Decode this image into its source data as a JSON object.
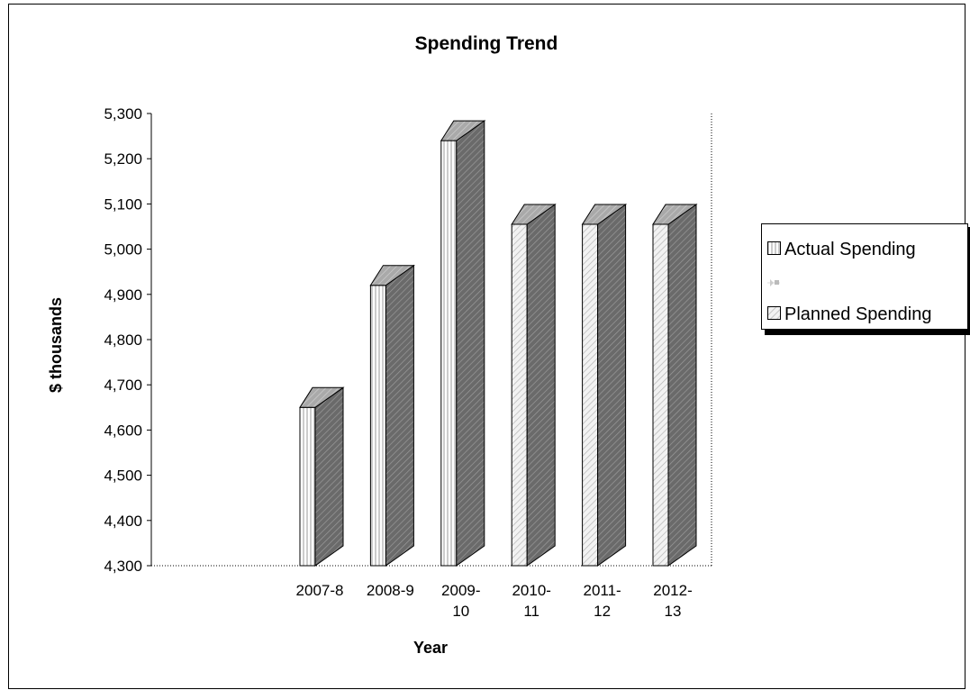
{
  "chart_data": {
    "type": "bar",
    "title": "Spending Trend",
    "xlabel": "Year",
    "ylabel": "$ thousands",
    "categories": [
      [
        "2007-8"
      ],
      [
        "2008-9"
      ],
      [
        "2009-",
        "10"
      ],
      [
        "2010-",
        "11"
      ],
      [
        "2011-",
        "12"
      ],
      [
        "2012-",
        "13"
      ]
    ],
    "series": [
      {
        "name": "Actual Spending",
        "values": [
          4650,
          4920,
          5240,
          null,
          null,
          null
        ]
      },
      {
        "name": "Planned Spending",
        "values": [
          null,
          null,
          null,
          5055,
          5055,
          5055
        ]
      }
    ],
    "ylim": [
      4300,
      5300
    ],
    "yticks": [
      "4,300",
      "4,400",
      "4,500",
      "4,600",
      "4,700",
      "4,800",
      "4,900",
      "5,000",
      "5,100",
      "5,200",
      "5,300"
    ],
    "ytick_values": [
      4300,
      4400,
      4500,
      4600,
      4700,
      4800,
      4900,
      5000,
      5100,
      5200,
      5300
    ],
    "legend_position": "right",
    "grid": false
  },
  "legend": {
    "items": [
      "Actual Spending",
      "",
      "Planned Spending"
    ]
  }
}
